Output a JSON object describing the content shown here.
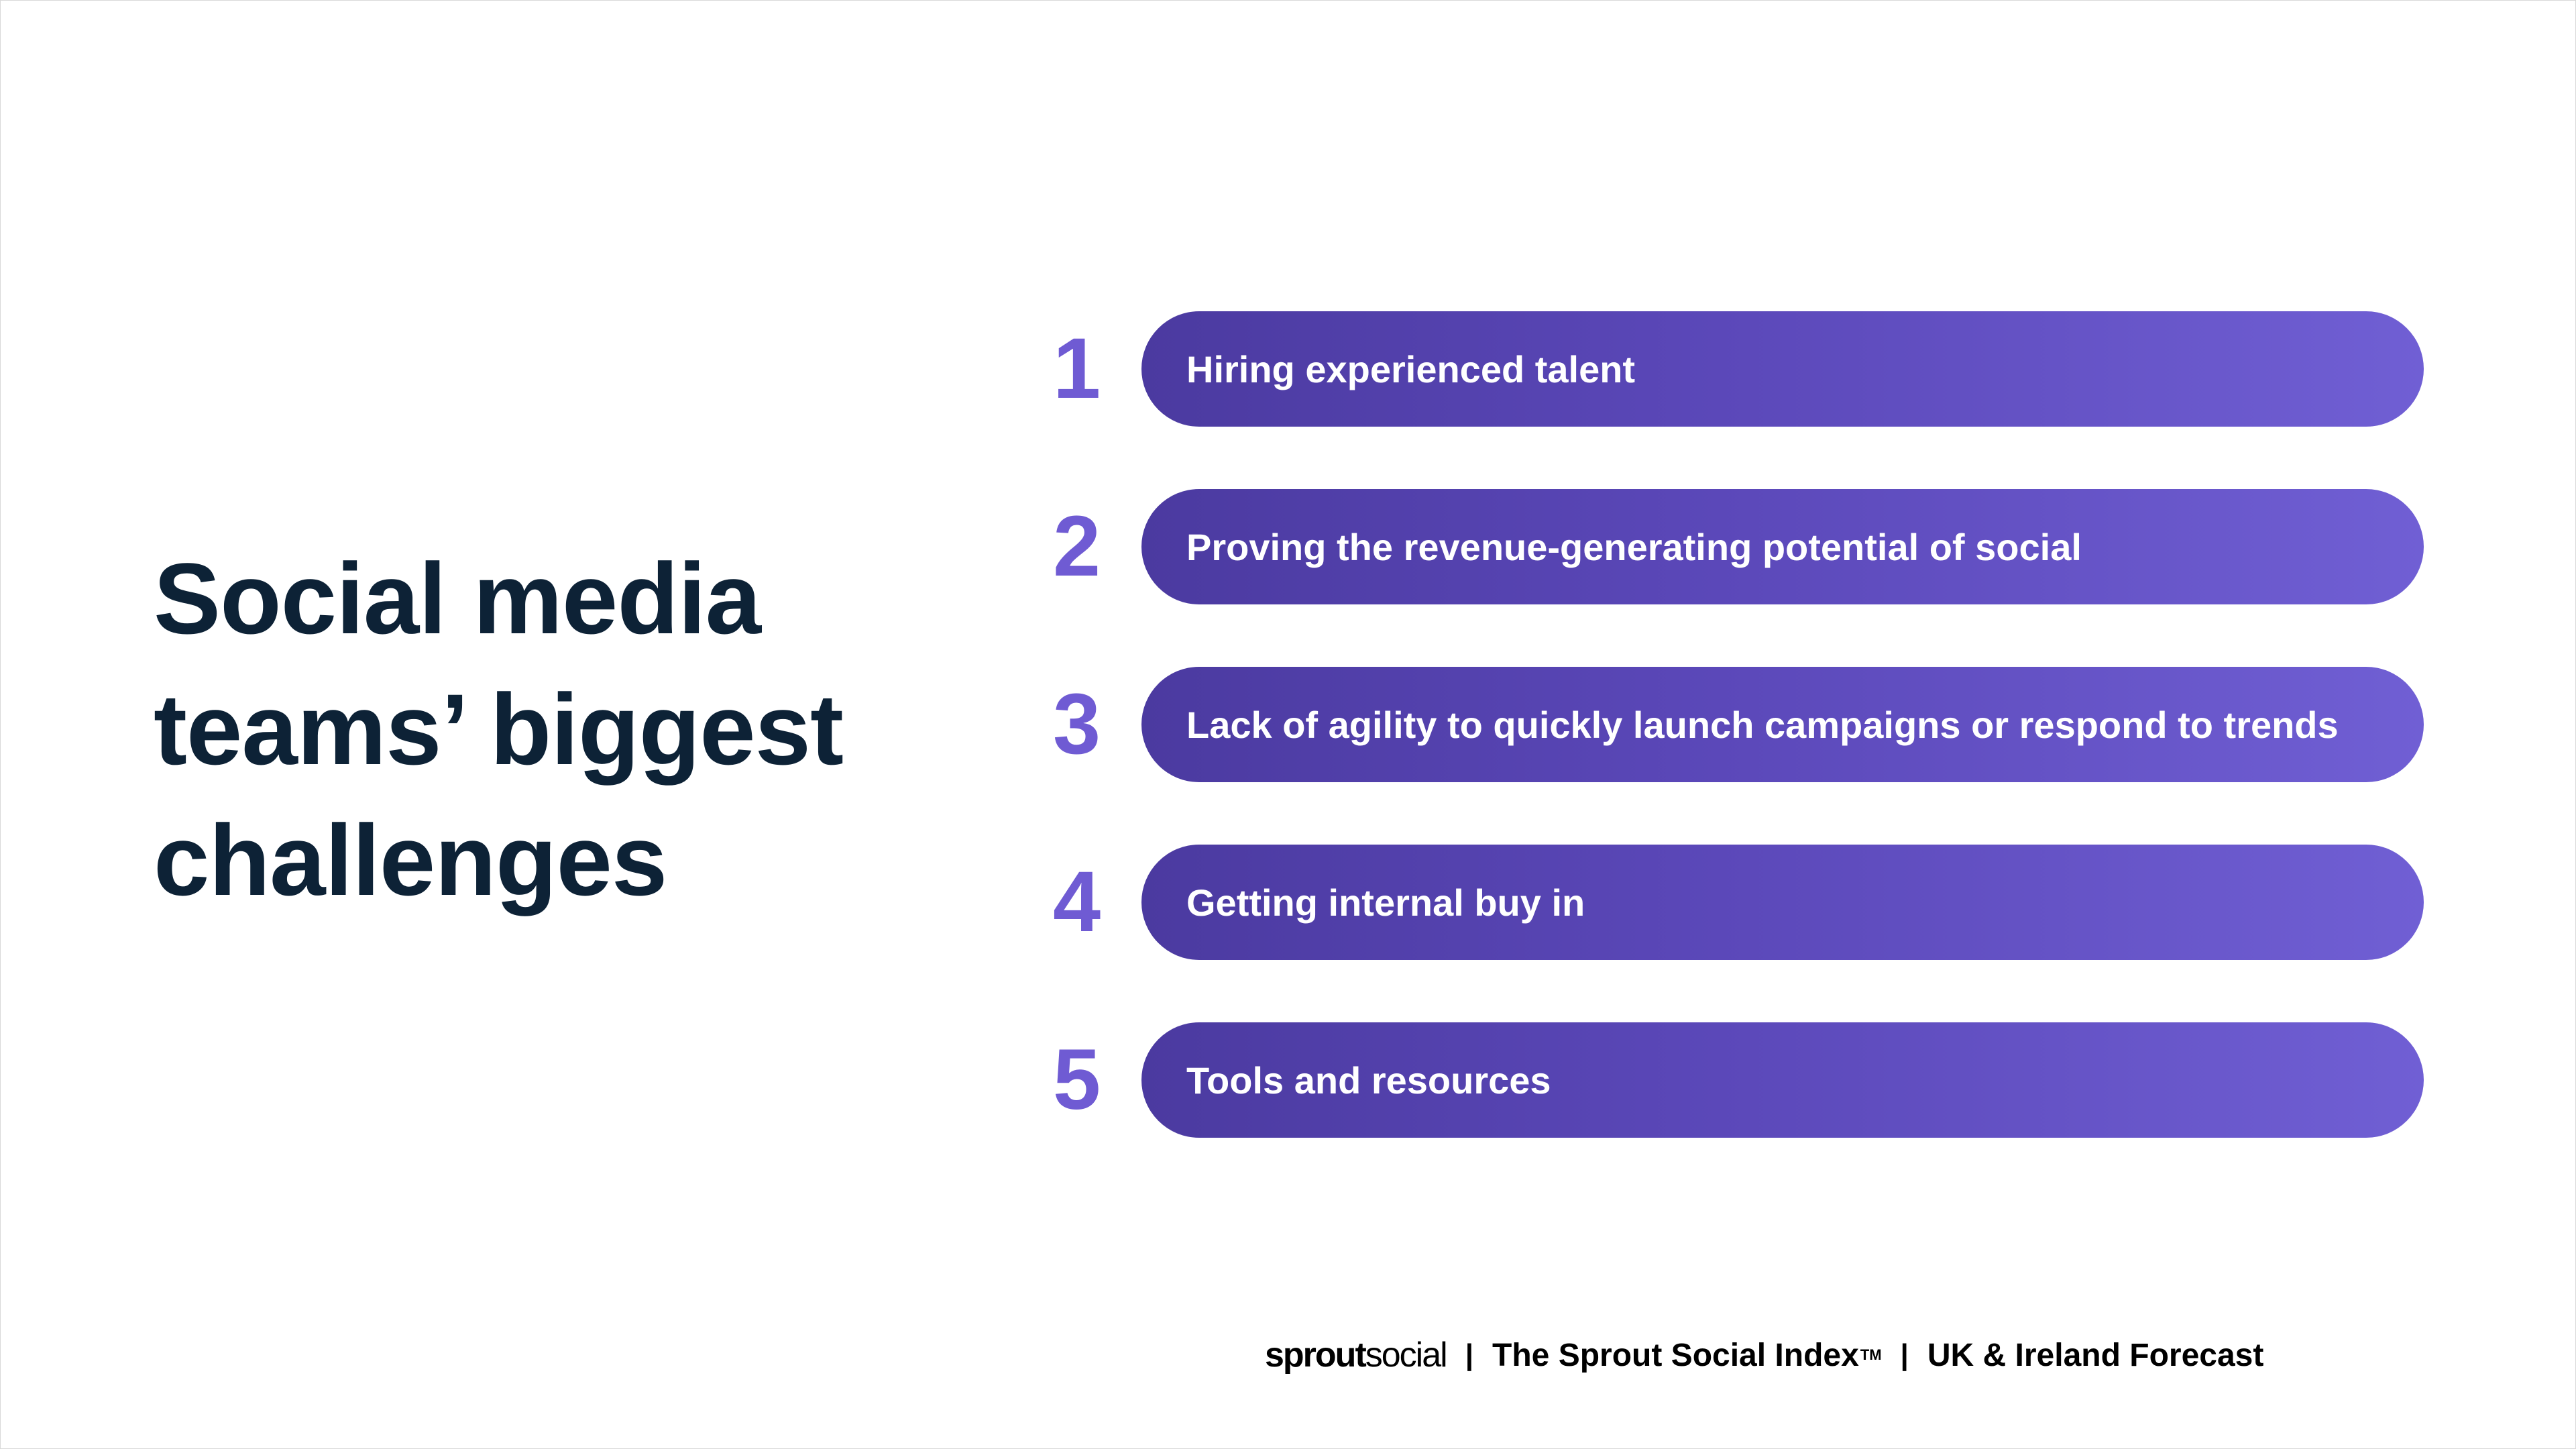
{
  "title": "Social media teams’ biggest challenges",
  "challenges": [
    {
      "number": "1",
      "label": "Hiring experienced talent"
    },
    {
      "number": "2",
      "label": "Proving the revenue-generating potential of social"
    },
    {
      "number": "3",
      "label": "Lack of agility to quickly launch campaigns or respond to trends"
    },
    {
      "number": "4",
      "label": "Getting internal buy in"
    },
    {
      "number": "5",
      "label": "Tools and resources"
    }
  ],
  "footer": {
    "logo_bold": "sprout",
    "logo_light": "social",
    "separator": "|",
    "index_name": "The Sprout Social Index",
    "trademark": "TM",
    "report_name": "UK & Ireland Forecast"
  },
  "colors": {
    "title": "#0d2236",
    "number": "#6f5bd3",
    "pill_start": "#4b3aa0",
    "pill_end": "#705fd4",
    "pill_text": "#ffffff"
  }
}
